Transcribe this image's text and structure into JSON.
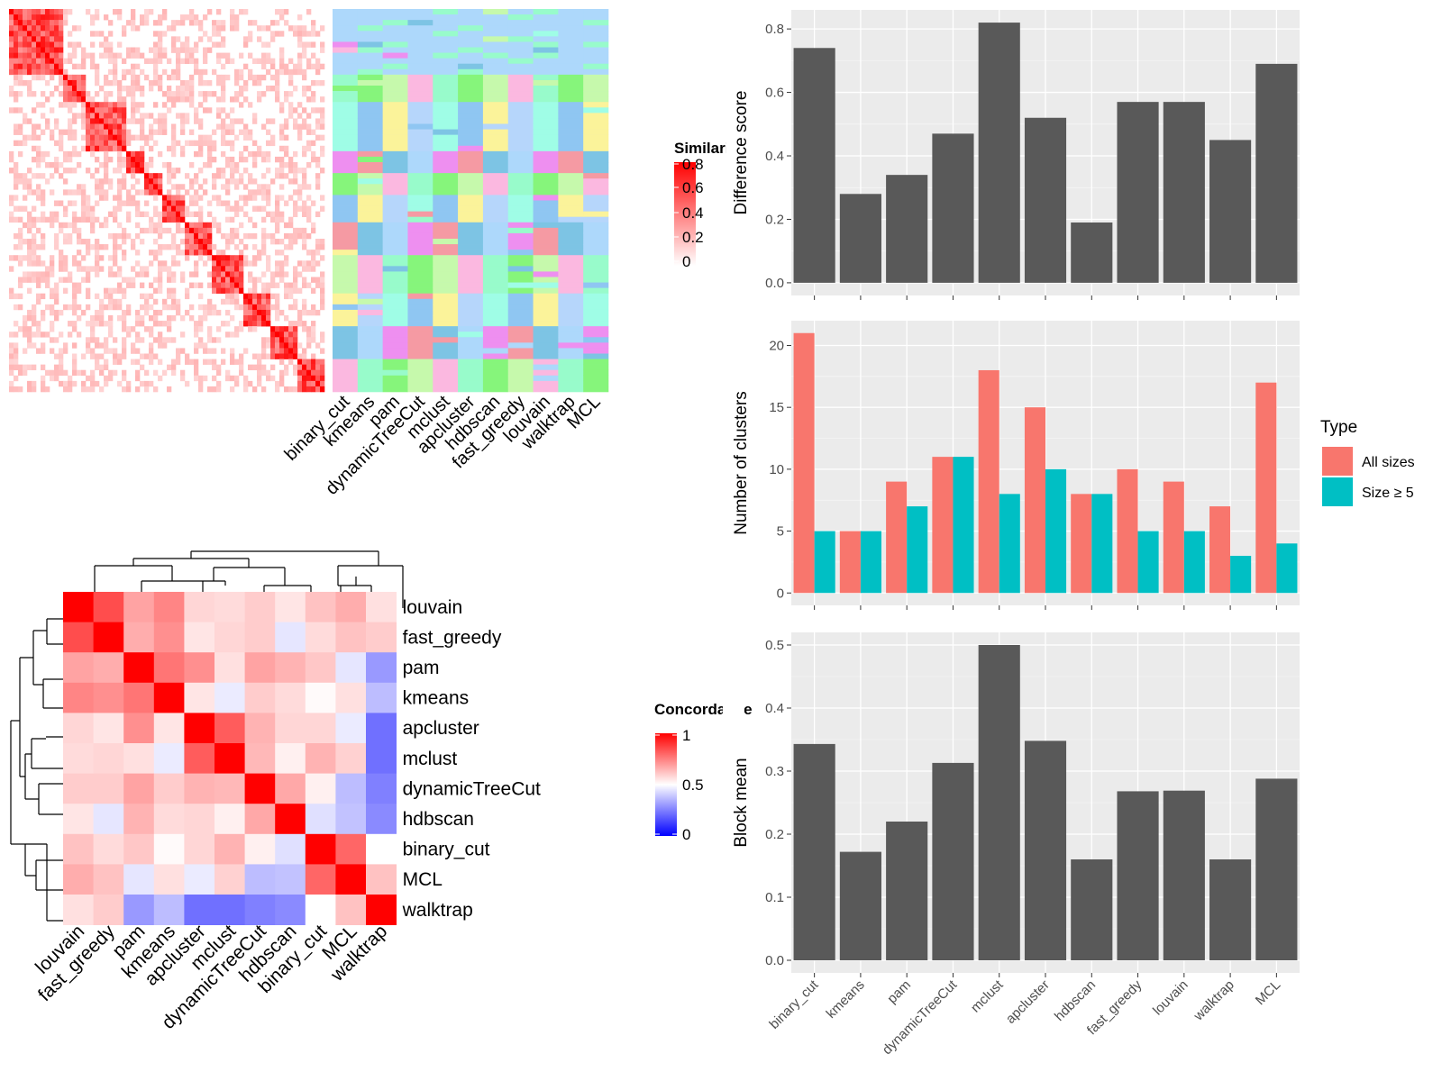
{
  "methods_order": [
    "binary_cut",
    "kmeans",
    "pam",
    "dynamicTreeCut",
    "mclust",
    "apcluster",
    "hdbscan",
    "fast_greedy",
    "louvain",
    "walktrap",
    "MCL"
  ],
  "colors": {
    "bar_fill": "#595959",
    "panel_bg": "#ebebeb",
    "all_sizes": "#F8766D",
    "size_ge5": "#00BFC4",
    "heat_high": "#ff0000",
    "heat_mid": "#ffffff",
    "heat_low": "#0000ff"
  },
  "similarity_panel": {
    "legend_title": "Similarity",
    "legend_ticks": [
      "0.8",
      "0.6",
      "0.4",
      "0.2",
      "0"
    ],
    "column_labels": [
      "binary_cut",
      "kmeans",
      "pam",
      "dynamicTreeCut",
      "mclust",
      "apcluster",
      "hdbscan",
      "fast_greedy",
      "louvain",
      "walktrap",
      "MCL"
    ]
  },
  "concordance_panel": {
    "legend_title": "Concordance",
    "legend_ticks": [
      "1",
      "0.5",
      "0"
    ],
    "labels": [
      "louvain",
      "fast_greedy",
      "pam",
      "kmeans",
      "apcluster",
      "mclust",
      "dynamicTreeCut",
      "hdbscan",
      "binary_cut",
      "MCL",
      "walktrap"
    ]
  },
  "chart_data": [
    {
      "type": "heatmap",
      "title": "",
      "labels": [
        "louvain",
        "fast_greedy",
        "pam",
        "kmeans",
        "apcluster",
        "mclust",
        "dynamicTreeCut",
        "hdbscan",
        "binary_cut",
        "MCL",
        "walktrap"
      ],
      "values": [
        [
          1.0,
          0.85,
          0.68,
          0.74,
          0.58,
          0.57,
          0.6,
          0.55,
          0.62,
          0.66,
          0.56
        ],
        [
          0.85,
          1.0,
          0.66,
          0.72,
          0.55,
          0.58,
          0.6,
          0.45,
          0.57,
          0.62,
          0.6
        ],
        [
          0.68,
          0.66,
          1.0,
          0.77,
          0.72,
          0.56,
          0.68,
          0.65,
          0.61,
          0.45,
          0.3
        ],
        [
          0.74,
          0.72,
          0.77,
          1.0,
          0.55,
          0.46,
          0.6,
          0.57,
          0.51,
          0.56,
          0.37
        ],
        [
          0.58,
          0.55,
          0.72,
          0.55,
          1.0,
          0.82,
          0.65,
          0.58,
          0.58,
          0.46,
          0.22
        ],
        [
          0.57,
          0.58,
          0.56,
          0.46,
          0.82,
          1.0,
          0.64,
          0.53,
          0.65,
          0.59,
          0.22
        ],
        [
          0.6,
          0.6,
          0.68,
          0.6,
          0.65,
          0.64,
          1.0,
          0.67,
          0.53,
          0.37,
          0.25
        ],
        [
          0.55,
          0.45,
          0.65,
          0.57,
          0.58,
          0.53,
          0.67,
          1.0,
          0.44,
          0.38,
          0.27
        ],
        [
          0.62,
          0.57,
          0.61,
          0.51,
          0.58,
          0.65,
          0.53,
          0.44,
          1.0,
          0.8,
          0.5
        ],
        [
          0.66,
          0.62,
          0.45,
          0.56,
          0.46,
          0.59,
          0.37,
          0.38,
          0.8,
          1.0,
          0.62
        ],
        [
          0.56,
          0.6,
          0.3,
          0.37,
          0.22,
          0.22,
          0.25,
          0.27,
          0.5,
          0.62,
          1.0
        ]
      ],
      "color_range": [
        0,
        1
      ]
    },
    {
      "type": "bar",
      "title": "",
      "categories": [
        "binary_cut",
        "kmeans",
        "pam",
        "dynamicTreeCut",
        "mclust",
        "apcluster",
        "hdbscan",
        "fast_greedy",
        "louvain",
        "walktrap",
        "MCL"
      ],
      "values": [
        0.74,
        0.28,
        0.34,
        0.47,
        0.82,
        0.52,
        0.19,
        0.57,
        0.57,
        0.45,
        0.69
      ],
      "xlabel": "",
      "ylabel": "Difference score",
      "ylim": [
        -0.04,
        0.86
      ],
      "yticks": [
        "0.0",
        "0.2",
        "0.4",
        "0.6",
        "0.8"
      ],
      "grid": true
    },
    {
      "type": "bar",
      "title": "",
      "categories": [
        "binary_cut",
        "kmeans",
        "pam",
        "dynamicTreeCut",
        "mclust",
        "apcluster",
        "hdbscan",
        "fast_greedy",
        "louvain",
        "walktrap",
        "MCL"
      ],
      "series": [
        {
          "name": "All sizes",
          "values": [
            21,
            5,
            9,
            11,
            18,
            15,
            8,
            10,
            9,
            7,
            17
          ]
        },
        {
          "name": "Size ≥ 5",
          "values": [
            5,
            5,
            7,
            11,
            8,
            10,
            8,
            5,
            5,
            3,
            4
          ]
        }
      ],
      "xlabel": "",
      "ylabel": "Number of clusters",
      "ylim": [
        -1,
        22
      ],
      "yticks": [
        "0",
        "5",
        "10",
        "15",
        "20"
      ],
      "legend": {
        "title": "Type",
        "position": "right"
      },
      "grid": true
    },
    {
      "type": "bar",
      "title": "",
      "categories": [
        "binary_cut",
        "kmeans",
        "pam",
        "dynamicTreeCut",
        "mclust",
        "apcluster",
        "hdbscan",
        "fast_greedy",
        "louvain",
        "walktrap",
        "MCL"
      ],
      "values": [
        0.343,
        0.172,
        0.22,
        0.313,
        0.5,
        0.348,
        0.16,
        0.268,
        0.269,
        0.16,
        0.288
      ],
      "xlabel": "",
      "ylabel": "Block mean",
      "ylim": [
        -0.02,
        0.52
      ],
      "yticks": [
        "0.0",
        "0.1",
        "0.2",
        "0.3",
        "0.4",
        "0.5"
      ],
      "grid": true
    }
  ]
}
